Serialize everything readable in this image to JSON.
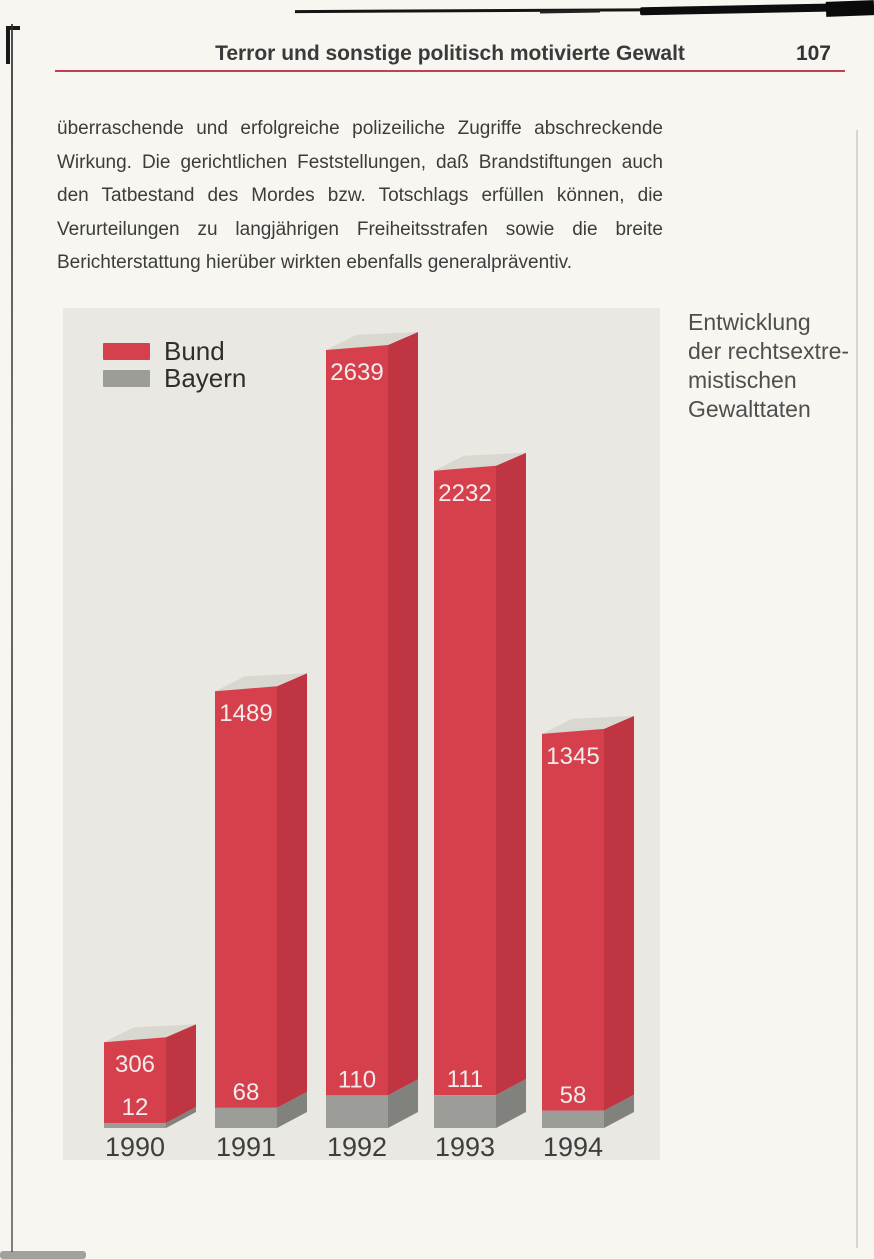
{
  "page": {
    "header": {
      "title": "Terror und sonstige politisch motivierte Gewalt",
      "page_number": "107",
      "rule_color": "#c2404f"
    },
    "paragraph_lines": [
      "überraschende und erfolgreiche polizeiliche Zugriffe abschreckende",
      "Wirkung. Die gerichtlichen Feststellungen, daß Brandstiftungen auch",
      "den Tatbestand des Mordes bzw. Totschlags erfüllen können, die",
      "Verurteilungen zu langjährigen Freiheitsstrafen sowie die breite",
      "Berichterstattung hierüber wirkten ebenfalls generalpräventiv."
    ],
    "caption_lines": [
      "Entwicklung",
      "der rechtsextre-",
      "mistischen",
      "Gewalttaten"
    ]
  },
  "chart_data": {
    "type": "bar",
    "subtype": "3d-column-with-subset-segment",
    "title": "Entwicklung der rechtsextremistischen Gewalttaten",
    "categories": [
      "1990",
      "1991",
      "1992",
      "1993",
      "1994"
    ],
    "series": [
      {
        "name": "Bund",
        "color": "#d5404c",
        "values": [
          306,
          1489,
          2639,
          2232,
          1345
        ]
      },
      {
        "name": "Bayern",
        "color": "#9c9c99",
        "values": [
          12,
          68,
          110,
          111,
          58
        ]
      }
    ],
    "legend_position": "top-left",
    "grid": false,
    "value_labels": true,
    "ylim": [
      0,
      2639
    ],
    "colors": {
      "bund_front": "#d5404c",
      "bund_side": "#bf3542",
      "bayern_front": "#9c9c99",
      "bayern_side": "#81817e",
      "top_face": "#d8d7d0",
      "panel_bg": "#e9e8e2"
    }
  }
}
